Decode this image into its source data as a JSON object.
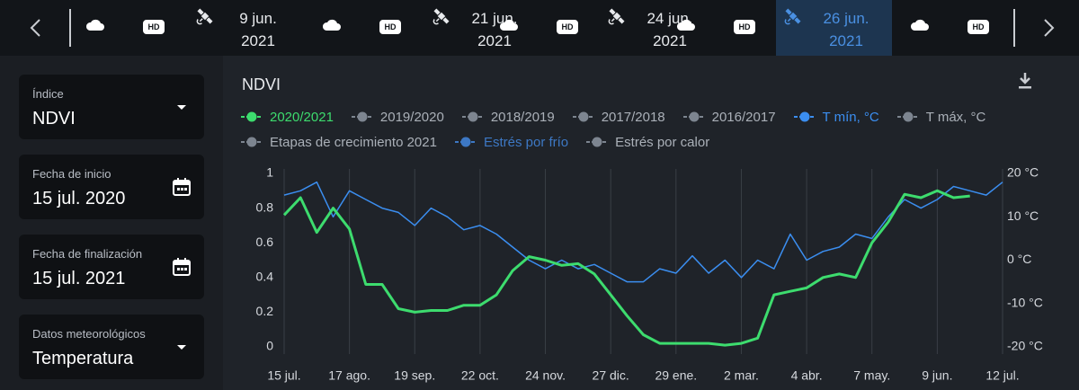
{
  "timeline": {
    "items": [
      {
        "badge": "HD"
      },
      {
        "date": "9 jun.",
        "year": "2021"
      },
      {
        "badge": "HD"
      },
      {
        "date": "21 jun.",
        "year": "2021"
      },
      {
        "badge": "HD"
      },
      {
        "date": "24 jun.",
        "year": "2021"
      },
      {
        "badge": "HD"
      },
      {
        "date": "26 jun.",
        "year": "2021",
        "selected": true
      },
      {
        "badge": "HD"
      }
    ]
  },
  "sidebar": {
    "fields": [
      {
        "label": "Índice",
        "value": "NDVI",
        "control": "dropdown"
      },
      {
        "label": "Fecha de inicio",
        "value": "15 jul. 2020",
        "control": "calendar"
      },
      {
        "label": "Fecha de finalización",
        "value": "15 jul. 2021",
        "control": "calendar"
      },
      {
        "label": "Datos meteorológicos",
        "value": "Temperatura",
        "control": "dropdown"
      }
    ]
  },
  "chart_data": {
    "type": "line",
    "title": "NDVI",
    "categories": [
      "15 jul.",
      null,
      null,
      null,
      "17 ago.",
      null,
      null,
      null,
      "19 sep.",
      null,
      null,
      null,
      "22 oct.",
      null,
      null,
      null,
      "24 nov.",
      null,
      null,
      null,
      "27 dic.",
      null,
      null,
      null,
      "29 ene.",
      null,
      null,
      null,
      "2 mar.",
      null,
      null,
      null,
      "4 abr.",
      null,
      null,
      null,
      "7 may.",
      null,
      null,
      null,
      "9 jun.",
      null,
      null,
      null,
      "12 jul."
    ],
    "series": [
      {
        "name": "2020/2021",
        "color": "#3ddc6e",
        "active": true,
        "values": [
          0.76,
          0.86,
          0.66,
          0.8,
          0.68,
          0.36,
          0.36,
          0.22,
          0.2,
          0.21,
          0.21,
          0.24,
          0.24,
          0.3,
          0.44,
          0.52,
          0.5,
          0.47,
          0.48,
          0.42,
          0.3,
          0.18,
          0.07,
          0.02,
          0.02,
          0.02,
          0.02,
          0.01,
          0.02,
          0.05,
          0.3,
          0.32,
          0.34,
          0.4,
          0.42,
          0.4,
          0.6,
          0.72,
          0.88,
          0.86,
          0.9,
          0.86,
          0.87,
          null,
          null
        ]
      },
      {
        "name": "2019/2020",
        "color": "#7d8590"
      },
      {
        "name": "2018/2019",
        "color": "#7d8590"
      },
      {
        "name": "2017/2018",
        "color": "#7d8590"
      },
      {
        "name": "2016/2017",
        "color": "#7d8590"
      },
      {
        "name": "T mín, °C",
        "color": "#3b8ef0",
        "active": true,
        "axis": "y2",
        "values": [
          15,
          16,
          18,
          10,
          16,
          14,
          12,
          11,
          8,
          12,
          10,
          7,
          8,
          6,
          3,
          0,
          -2,
          0,
          -2,
          -1,
          -3,
          -5,
          -5,
          -2,
          -3,
          1,
          -3,
          0,
          -4,
          0,
          -2,
          6,
          0,
          2,
          3,
          6,
          5,
          10,
          14,
          12,
          14,
          17,
          16,
          15,
          18
        ]
      },
      {
        "name": "T máx, °C",
        "color": "#7d8590"
      },
      {
        "name": "Etapas de crecimiento 2021",
        "color": "#7d8590"
      },
      {
        "name": "Estrés por frío",
        "color": "#3d78c4",
        "active": true
      },
      {
        "name": "Estrés por calor",
        "color": "#7d8590"
      }
    ],
    "ylim": [
      0,
      1
    ],
    "yticks": [
      0,
      0.2,
      0.4,
      0.6,
      0.8,
      1
    ],
    "y2lim": [
      -20,
      20
    ],
    "y2ticks": [
      {
        "value": -20,
        "label": "-20 °C"
      },
      {
        "value": -10,
        "label": "-10 °C"
      },
      {
        "value": 0,
        "label": "0 °C"
      },
      {
        "value": 10,
        "label": "10 °C"
      },
      {
        "value": 20,
        "label": "20 °C"
      }
    ],
    "grid": true
  }
}
